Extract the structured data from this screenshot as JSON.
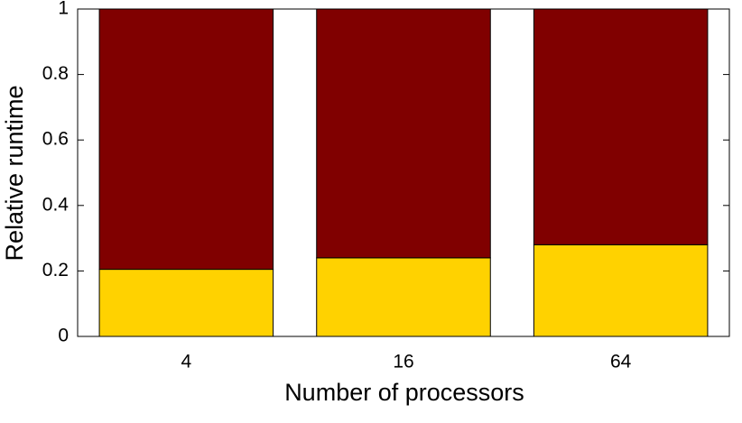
{
  "chart_data": {
    "type": "stacked_bar",
    "x_label": "Number of processors",
    "y_label": "Relative runtime",
    "categories": [
      "4",
      "16",
      "64"
    ],
    "series": [
      {
        "color": "#ffd200",
        "values": [
          0.205,
          0.24,
          0.28
        ]
      },
      {
        "color": "#800000",
        "values": [
          0.795,
          0.76,
          0.72
        ]
      }
    ],
    "ylim": [
      0,
      1
    ],
    "yticks": [
      0,
      0.2,
      0.4,
      0.6,
      0.8,
      1
    ],
    "grid": false
  }
}
